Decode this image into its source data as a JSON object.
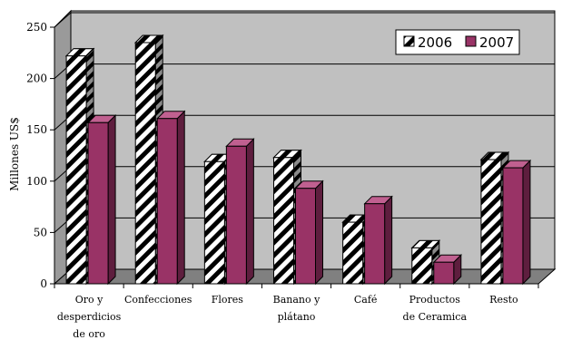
{
  "chart_data": {
    "type": "bar",
    "title": "",
    "ylabel": "Millones US$",
    "xlabel": "",
    "ylim": [
      0,
      250
    ],
    "yticks": [
      0,
      50,
      100,
      150,
      200,
      250
    ],
    "grid": true,
    "legend_position": "top-right",
    "categories": [
      [
        "Oro y",
        "desperdicios",
        "de oro"
      ],
      [
        "Confecciones"
      ],
      [
        "Flores"
      ],
      [
        "Banano y",
        "plátano"
      ],
      [
        "Café"
      ],
      [
        "Productos",
        "de Ceramica"
      ],
      [
        "Resto"
      ]
    ],
    "series": [
      {
        "name": "2006",
        "style": "diagonal-hatch",
        "color": "#000000",
        "values": [
          222,
          235,
          119,
          123,
          60,
          35,
          121
        ]
      },
      {
        "name": "2007",
        "style": "solid",
        "color": "#993366",
        "values": [
          157,
          161,
          134,
          93,
          78,
          21,
          113
        ]
      }
    ],
    "colors": {
      "wall": "#c0c0c0",
      "floor": "#808080",
      "bar2007_side": "#5e1e3e",
      "bar2007_top": "#c06090"
    }
  }
}
